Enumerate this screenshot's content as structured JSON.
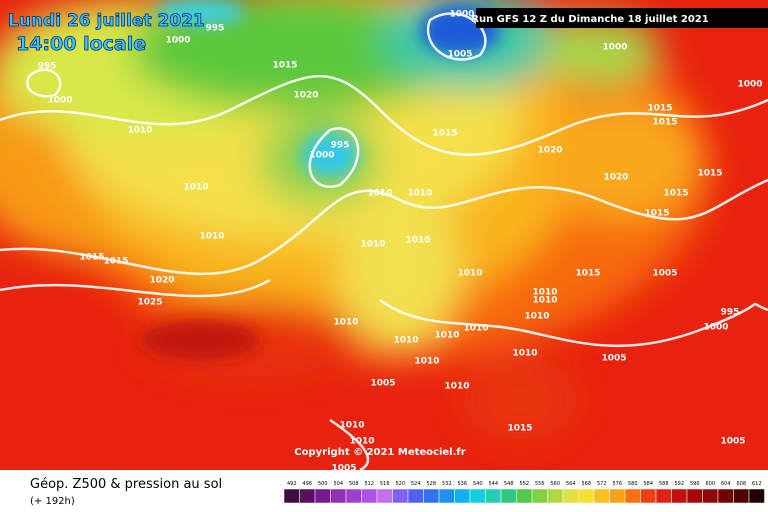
{
  "header": {
    "date": "Lundi 26 juillet 2021",
    "time": "14:00 locale",
    "run": "Run GFS 12 Z du Dimanche 18 juillet 2021"
  },
  "copyright": "Copyright © 2021 Meteociel.fr",
  "footer": {
    "title": "Géop. Z500 & pression au sol",
    "lead": "(+ 192h)"
  },
  "legend_ticks": [
    492,
    496,
    500,
    504,
    508,
    512,
    516,
    520,
    524,
    528,
    532,
    536,
    540,
    544,
    548,
    552,
    556,
    560,
    564,
    568,
    572,
    576,
    580,
    584,
    588,
    592,
    596,
    600,
    604,
    608,
    612
  ],
  "isobar_labels": [
    995,
    1000,
    1000,
    1005,
    1000,
    995,
    1000,
    1015,
    1020,
    1010,
    1015,
    995,
    1000,
    1020,
    1015,
    1015,
    1000,
    1010,
    1010,
    1010,
    1020,
    1015,
    1015,
    1015,
    1010,
    1010,
    1010,
    1015,
    1015,
    1020,
    1010,
    1015,
    1005,
    1010,
    1010,
    1025,
    995,
    1010,
    1000,
    1010,
    1010,
    1010,
    1010,
    1010,
    1005,
    1010,
    1005,
    1010,
    1015,
    1010,
    1010,
    1005,
    1005
  ]
}
